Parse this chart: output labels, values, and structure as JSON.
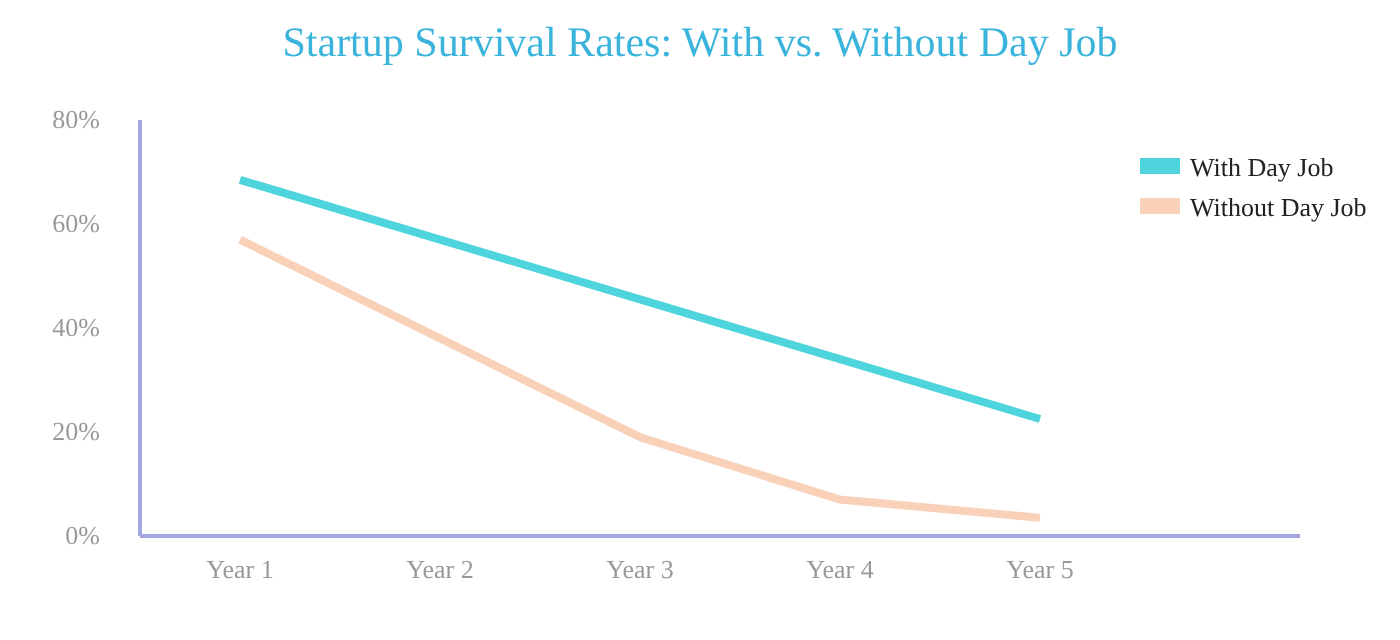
{
  "chart_data": {
    "type": "line",
    "title": "Startup Survival Rates: With vs. Without Day Job",
    "categories": [
      "Year 1",
      "Year 2",
      "Year 3",
      "Year 4",
      "Year 5"
    ],
    "series": [
      {
        "name": "With Day Job",
        "color": "#4dd4dc",
        "values": [
          68.5,
          57,
          45.5,
          34,
          22.5
        ]
      },
      {
        "name": "Without Day Job",
        "color": "#f9d0b8",
        "values": [
          57,
          38,
          19,
          7,
          3.5
        ]
      }
    ],
    "ylim": [
      0,
      80
    ],
    "yticks": [
      {
        "value": 0,
        "label": "0%"
      },
      {
        "value": 20,
        "label": "20%"
      },
      {
        "value": 40,
        "label": "40%"
      },
      {
        "value": 60,
        "label": "60%"
      },
      {
        "value": 80,
        "label": "80%"
      }
    ],
    "grid": false,
    "legend": "top right",
    "marker": "none",
    "line_style": "solid"
  }
}
